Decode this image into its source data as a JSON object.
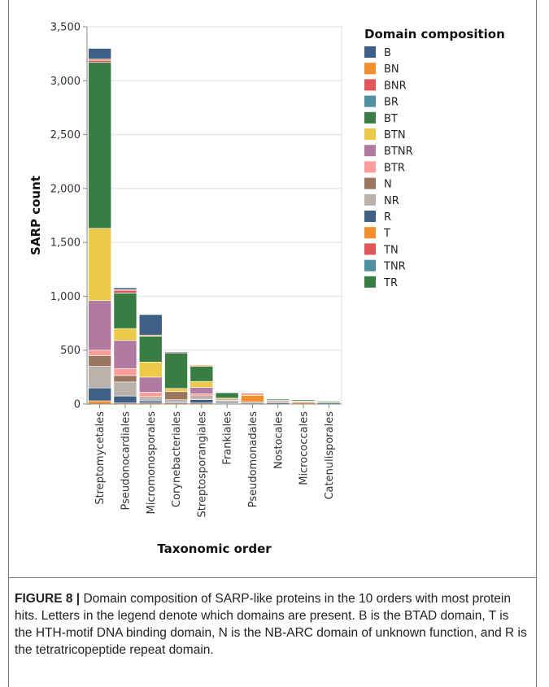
{
  "caption": {
    "label": "FIGURE 8 |",
    "text": " Domain composition of SARP-like proteins in the 10 orders with most protein hits. Letters in the legend denote which domains are present. B is the BTAD domain, T is the HTH-motif DNA binding domain, N is the NB-ARC domain of unknown function, and R is the tetratricopeptide repeat domain."
  },
  "chart_data": {
    "type": "bar",
    "stacked": true,
    "xlabel": "Taxonomic order",
    "ylabel": "SARP count",
    "ylim": [
      0,
      3500
    ],
    "yticks": [
      0,
      500,
      1000,
      1500,
      2000,
      2500,
      3000,
      3500
    ],
    "ytick_labels": [
      "0",
      "500",
      "1,000",
      "1,500",
      "2,000",
      "2,500",
      "3,000",
      "3,500"
    ],
    "grid": true,
    "legend_title": "Domain composition",
    "legend_position": "right",
    "categories": [
      "Streptomycetales",
      "Pseudonocardiales",
      "Micromonosporales",
      "Corynebacteriales",
      "Streptosporangiales",
      "Frankiales",
      "Pseudomonadales",
      "Nostocales",
      "Micrococcales",
      "Catenulisporales"
    ],
    "series": [
      {
        "name": "B",
        "color": "#3f5f86",
        "values": [
          100,
          40,
          20,
          10,
          30,
          5,
          0,
          5,
          0,
          5
        ]
      },
      {
        "name": "BN",
        "color": "#f28e2b",
        "values": [
          20,
          5,
          5,
          5,
          5,
          2,
          0,
          2,
          15,
          2
        ]
      },
      {
        "name": "BNR",
        "color": "#e15759",
        "values": [
          10,
          5,
          5,
          0,
          5,
          0,
          0,
          0,
          0,
          0
        ]
      },
      {
        "name": "BR",
        "color": "#4e8fa0",
        "values": [
          10,
          5,
          5,
          5,
          5,
          5,
          0,
          0,
          0,
          0
        ]
      },
      {
        "name": "BT",
        "color": "#3a7d44",
        "values": [
          0,
          5,
          0,
          0,
          0,
          5,
          0,
          10,
          5,
          5
        ]
      },
      {
        "name": "BTN",
        "color": "#edc948",
        "values": [
          0,
          0,
          0,
          0,
          0,
          0,
          0,
          0,
          5,
          0
        ]
      },
      {
        "name": "BTNR",
        "color": "#b07aa1",
        "values": [
          0,
          0,
          0,
          0,
          0,
          0,
          0,
          0,
          0,
          0
        ]
      },
      {
        "name": "BTR",
        "color": "#ff9d9a",
        "values": [
          0,
          5,
          0,
          0,
          0,
          0,
          0,
          0,
          0,
          0
        ]
      },
      {
        "name": "N",
        "color": "#9c755f",
        "values": [
          0,
          0,
          0,
          85,
          10,
          5,
          0,
          5,
          0,
          0
        ]
      },
      {
        "name": "NR",
        "color": "#bab0ac",
        "values": [
          210,
          140,
          20,
          20,
          10,
          10,
          10,
          10,
          10,
          5
        ]
      },
      {
        "name": "R",
        "color": "#3f5f86",
        "values": [
          0,
          0,
          0,
          0,
          0,
          0,
          0,
          0,
          0,
          0
        ]
      },
      {
        "name": "T",
        "color": "#f28e2b",
        "values": [
          0,
          0,
          0,
          0,
          0,
          0,
          65,
          0,
          0,
          0
        ]
      },
      {
        "name": "TN",
        "color": "#e15759",
        "values": [
          0,
          0,
          0,
          0,
          0,
          0,
          15,
          0,
          0,
          0
        ]
      },
      {
        "name": "TNR",
        "color": "#4e8fa0",
        "values": [
          0,
          0,
          0,
          0,
          0,
          0,
          0,
          0,
          0,
          0
        ]
      },
      {
        "name": "TR",
        "color": "#3a7d44",
        "values": [
          0,
          0,
          0,
          0,
          0,
          0,
          0,
          0,
          0,
          0
        ]
      }
    ],
    "stack_segments": [
      [
        {
          "series": "BN",
          "value": 30
        },
        {
          "series": "B",
          "value": 120
        },
        {
          "series": "NR",
          "value": 200
        },
        {
          "series": "N",
          "value": 100
        },
        {
          "series": "BTR",
          "value": 50
        },
        {
          "series": "BTNR",
          "value": 460
        },
        {
          "series": "BTN",
          "value": 670
        },
        {
          "series": "BT",
          "value": 1540
        },
        {
          "series": "BNR",
          "value": 20
        },
        {
          "series": "BN",
          "value": 10
        },
        {
          "series": "B",
          "value": 100
        }
      ],
      [
        {
          "series": "BN",
          "value": 10
        },
        {
          "series": "B",
          "value": 65
        },
        {
          "series": "NR",
          "value": 130
        },
        {
          "series": "N",
          "value": 60
        },
        {
          "series": "BTR",
          "value": 65
        },
        {
          "series": "BTNR",
          "value": 260
        },
        {
          "series": "BTN",
          "value": 110
        },
        {
          "series": "BT",
          "value": 330
        },
        {
          "series": "BNR",
          "value": 25
        },
        {
          "series": "BTNR",
          "value": 10
        },
        {
          "series": "B",
          "value": 15
        }
      ],
      [
        {
          "series": "BN",
          "value": 10
        },
        {
          "series": "B",
          "value": 20
        },
        {
          "series": "NR",
          "value": 30
        },
        {
          "series": "N",
          "value": 10
        },
        {
          "series": "BTR",
          "value": 40
        },
        {
          "series": "BTNR",
          "value": 140
        },
        {
          "series": "BTN",
          "value": 140
        },
        {
          "series": "BT",
          "value": 240
        },
        {
          "series": "BN",
          "value": 10
        },
        {
          "series": "B",
          "value": 190
        }
      ],
      [
        {
          "series": "BN",
          "value": 10
        },
        {
          "series": "B",
          "value": 10
        },
        {
          "series": "NR",
          "value": 20
        },
        {
          "series": "N",
          "value": 75
        },
        {
          "series": "BTN",
          "value": 30
        },
        {
          "series": "BT",
          "value": 330
        },
        {
          "series": "BTNR",
          "value": 10
        },
        {
          "series": "BNR",
          "value": 5
        },
        {
          "series": "BTR",
          "value": 5
        }
      ],
      [
        {
          "series": "BN",
          "value": 10
        },
        {
          "series": "B",
          "value": 30
        },
        {
          "series": "NR",
          "value": 20
        },
        {
          "series": "N",
          "value": 15
        },
        {
          "series": "BTR",
          "value": 20
        },
        {
          "series": "BTNR",
          "value": 60
        },
        {
          "series": "BTN",
          "value": 55
        },
        {
          "series": "BT",
          "value": 140
        },
        {
          "series": "BN",
          "value": 10
        }
      ],
      [
        {
          "series": "BN",
          "value": 5
        },
        {
          "series": "B",
          "value": 10
        },
        {
          "series": "NR",
          "value": 20
        },
        {
          "series": "N",
          "value": 10
        },
        {
          "series": "BTN",
          "value": 10
        },
        {
          "series": "BT",
          "value": 50
        }
      ],
      [
        {
          "series": "NR",
          "value": 20
        },
        {
          "series": "T",
          "value": 60
        },
        {
          "series": "BN",
          "value": 10
        },
        {
          "series": "TN",
          "value": 10
        }
      ],
      [
        {
          "series": "B",
          "value": 10
        },
        {
          "series": "NR",
          "value": 15
        },
        {
          "series": "BTNR",
          "value": 10
        },
        {
          "series": "BT",
          "value": 10
        }
      ],
      [
        {
          "series": "BN",
          "value": 15
        },
        {
          "series": "NR",
          "value": 10
        },
        {
          "series": "BTN",
          "value": 5
        },
        {
          "series": "BT",
          "value": 10
        }
      ],
      [
        {
          "series": "B",
          "value": 10
        },
        {
          "series": "NR",
          "value": 5
        },
        {
          "series": "BT",
          "value": 10
        }
      ]
    ]
  }
}
